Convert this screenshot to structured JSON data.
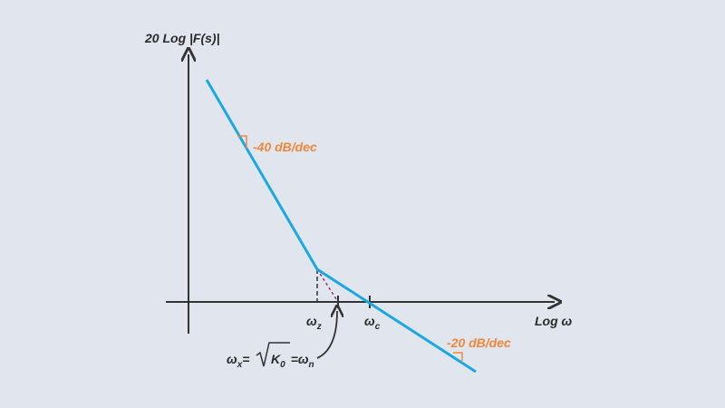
{
  "axes": {
    "y_label": "20 Log |F(s)|",
    "x_label": "Log ω"
  },
  "slopes": [
    {
      "label": "-40 dB/dec"
    },
    {
      "label": "-20 dB/dec"
    }
  ],
  "markers": [
    {
      "symbol": "ω",
      "subscript": "z"
    },
    {
      "symbol": "ω",
      "subscript": "c"
    }
  ],
  "annotation": {
    "lhs": "ω",
    "lhs_sub": "x",
    "eq1": "=",
    "radicand": "K",
    "radicand_sub": "0",
    "rhs": "=ω",
    "rhs_sub": "n"
  }
}
